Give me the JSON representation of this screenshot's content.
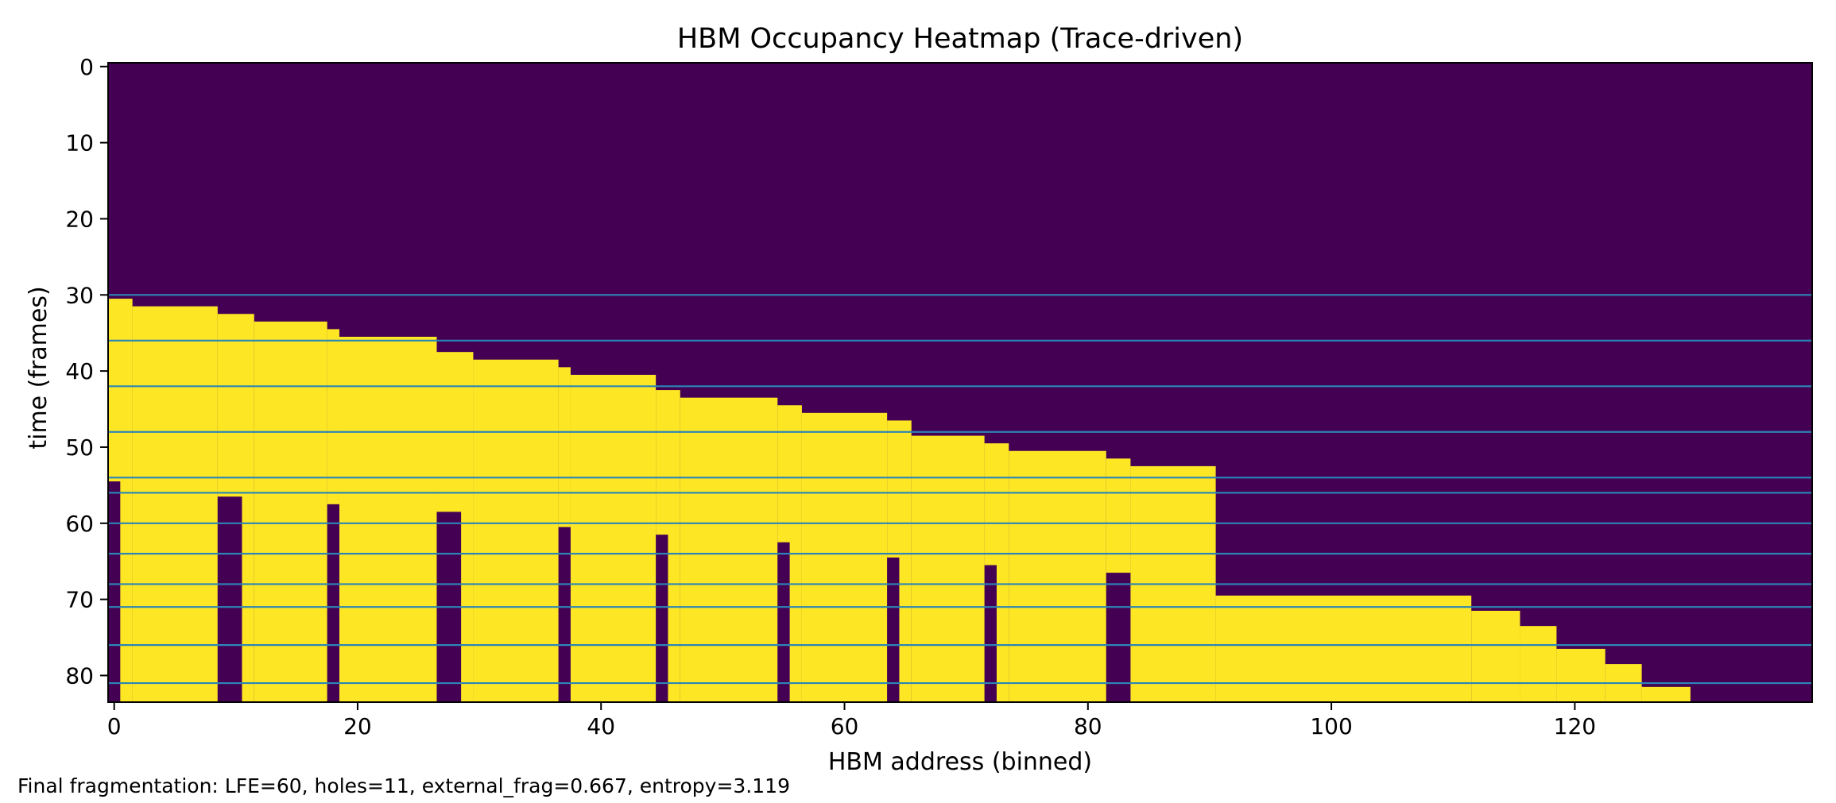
{
  "chart_data": {
    "type": "heatmap",
    "title": "HBM Occupancy Heatmap (Trace-driven)",
    "xlabel": "HBM address (binned)",
    "ylabel": "time (frames)",
    "x_range": [
      -0.5,
      139.5
    ],
    "y_range": [
      -0.5,
      83.5
    ],
    "x_ticks": [
      0,
      20,
      40,
      60,
      80,
      100,
      120
    ],
    "y_ticks": [
      0,
      10,
      20,
      30,
      40,
      50,
      60,
      70,
      80
    ],
    "y_inverted": true,
    "colors": {
      "free": "#440154",
      "occupied": "#fde725",
      "marker_line": "#2a86b6"
    },
    "boundary": [
      {
        "x_start": 0,
        "x_end": 1,
        "first_row": 31
      },
      {
        "x_start": 2,
        "x_end": 8,
        "first_row": 32
      },
      {
        "x_start": 9,
        "x_end": 11,
        "first_row": 33
      },
      {
        "x_start": 12,
        "x_end": 17,
        "first_row": 34
      },
      {
        "x_start": 18,
        "x_end": 18,
        "first_row": 35
      },
      {
        "x_start": 19,
        "x_end": 26,
        "first_row": 36
      },
      {
        "x_start": 27,
        "x_end": 29,
        "first_row": 38
      },
      {
        "x_start": 30,
        "x_end": 36,
        "first_row": 39
      },
      {
        "x_start": 37,
        "x_end": 37,
        "first_row": 40
      },
      {
        "x_start": 38,
        "x_end": 44,
        "first_row": 41
      },
      {
        "x_start": 45,
        "x_end": 46,
        "first_row": 43
      },
      {
        "x_start": 47,
        "x_end": 54,
        "first_row": 44
      },
      {
        "x_start": 55,
        "x_end": 56,
        "first_row": 45
      },
      {
        "x_start": 57,
        "x_end": 63,
        "first_row": 46
      },
      {
        "x_start": 64,
        "x_end": 65,
        "first_row": 47
      },
      {
        "x_start": 66,
        "x_end": 71,
        "first_row": 49
      },
      {
        "x_start": 72,
        "x_end": 73,
        "first_row": 50
      },
      {
        "x_start": 74,
        "x_end": 81,
        "first_row": 51
      },
      {
        "x_start": 82,
        "x_end": 83,
        "first_row": 52
      },
      {
        "x_start": 84,
        "x_end": 90,
        "first_row": 53
      },
      {
        "x_start": 91,
        "x_end": 111,
        "first_row": 70
      },
      {
        "x_start": 112,
        "x_end": 115,
        "first_row": 72
      },
      {
        "x_start": 116,
        "x_end": 118,
        "first_row": 74
      },
      {
        "x_start": 119,
        "x_end": 122,
        "first_row": 77
      },
      {
        "x_start": 123,
        "x_end": 125,
        "first_row": 79
      },
      {
        "x_start": 126,
        "x_end": 129,
        "first_row": 82
      }
    ],
    "holes": [
      {
        "x_start": 0,
        "x_end": 0,
        "from_row": 55
      },
      {
        "x_start": 9,
        "x_end": 10,
        "from_row": 57
      },
      {
        "x_start": 18,
        "x_end": 18,
        "from_row": 58
      },
      {
        "x_start": 27,
        "x_end": 28,
        "from_row": 59
      },
      {
        "x_start": 37,
        "x_end": 37,
        "from_row": 61
      },
      {
        "x_start": 45,
        "x_end": 45,
        "from_row": 62
      },
      {
        "x_start": 55,
        "x_end": 55,
        "from_row": 63
      },
      {
        "x_start": 64,
        "x_end": 64,
        "from_row": 65
      },
      {
        "x_start": 72,
        "x_end": 72,
        "from_row": 66
      },
      {
        "x_start": 82,
        "x_end": 83,
        "from_row": 67
      }
    ],
    "event_lines_y": [
      30,
      36,
      42,
      48,
      54,
      56,
      60,
      64,
      68,
      71,
      76,
      81
    ]
  },
  "footer_text": "Final fragmentation: LFE=60, holes=11, external_frag=0.667, entropy=3.119"
}
